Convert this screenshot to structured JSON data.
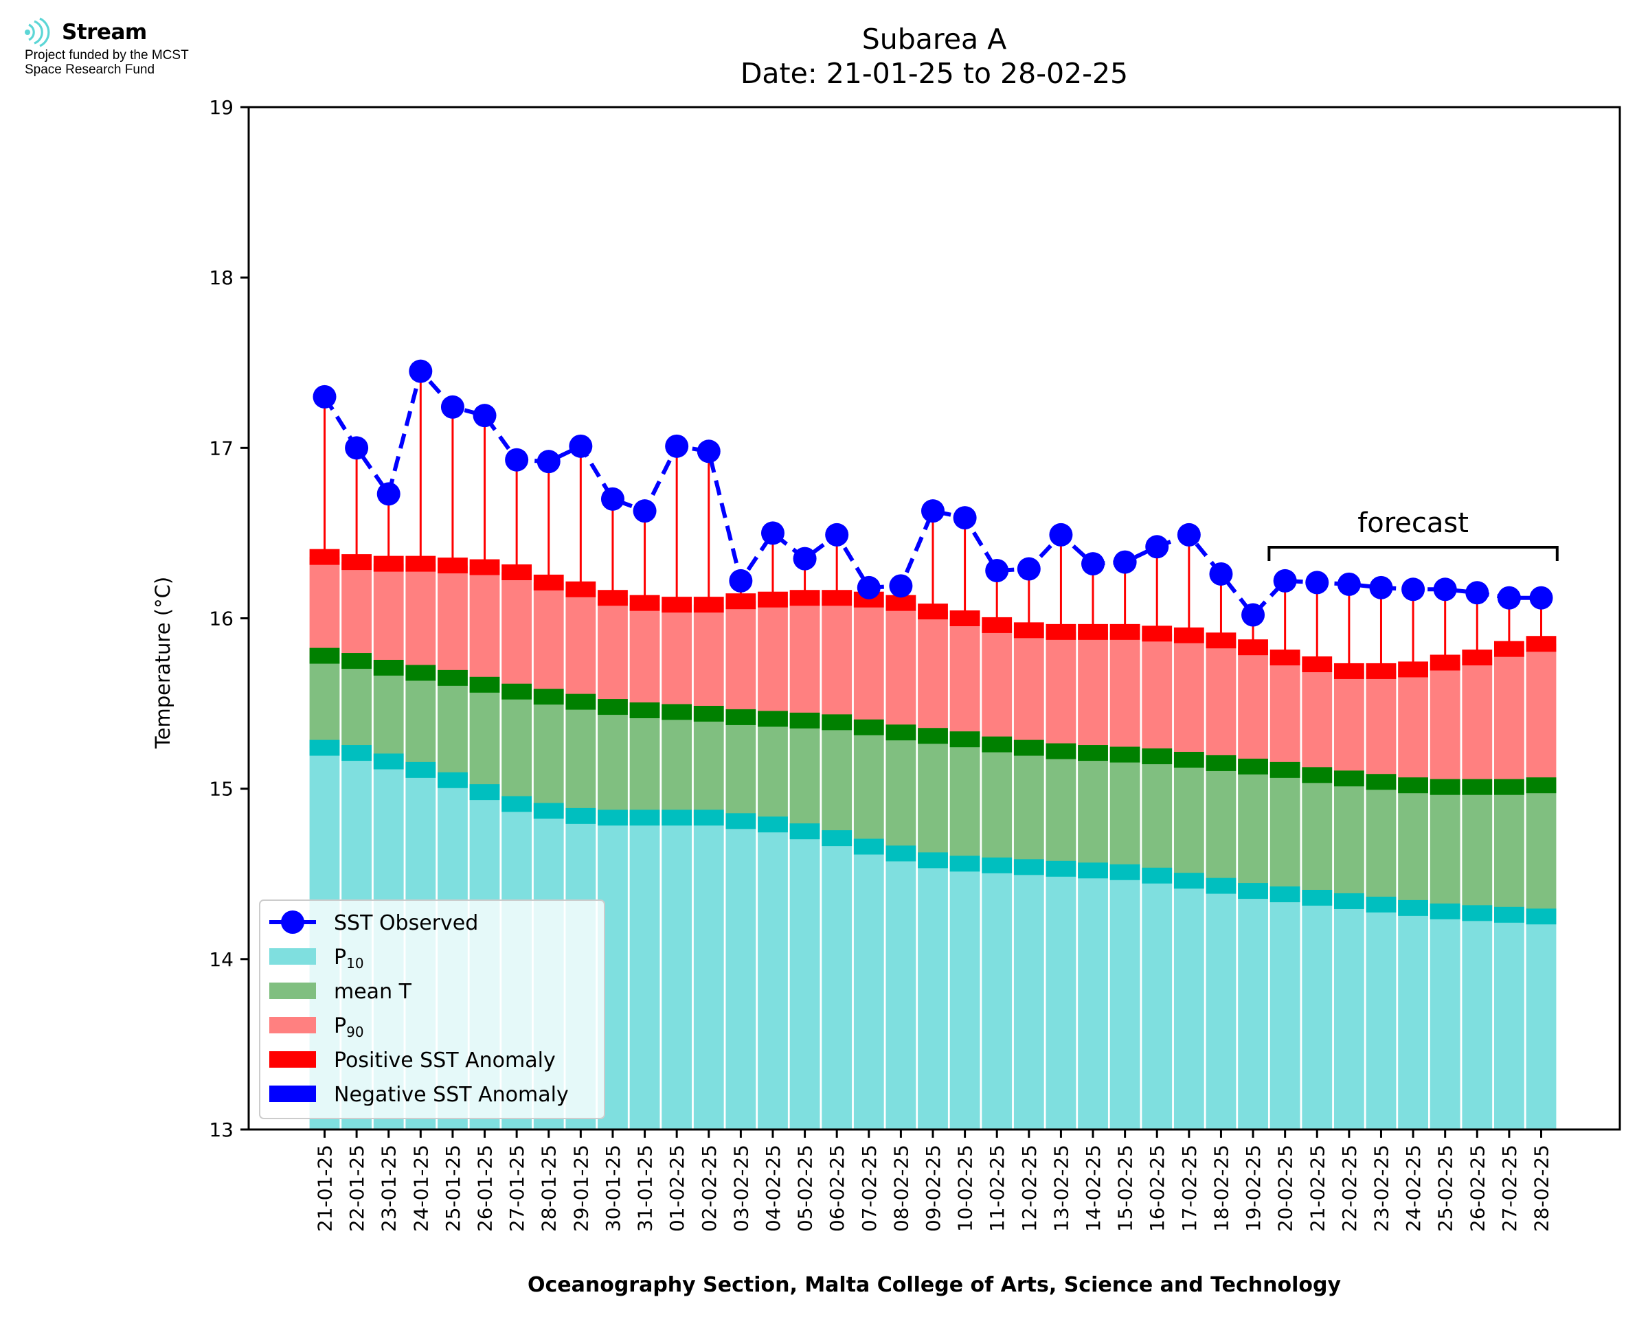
{
  "logo": {
    "name": "Stream",
    "funding_line1": "Project funded by the MCST",
    "funding_line2": "Space Research Fund",
    "color": "#5cd6d6"
  },
  "chart_data": {
    "type": "bar",
    "title": "Subarea A",
    "subtitle": "Date: 21-01-25 to 28-02-25",
    "xlabel": "Oceanography Section, Malta College of Arts, Science and Technology",
    "ylabel": "Temperature (°C)",
    "ylim": [
      13,
      19
    ],
    "yticks": [
      13,
      14,
      15,
      16,
      17,
      18,
      19
    ],
    "grid": false,
    "legend_position": "lower-left",
    "categories": [
      "21-01-25",
      "22-01-25",
      "23-01-25",
      "24-01-25",
      "25-01-25",
      "26-01-25",
      "27-01-25",
      "28-01-25",
      "29-01-25",
      "30-01-25",
      "31-01-25",
      "01-02-25",
      "02-02-25",
      "03-02-25",
      "04-02-25",
      "05-02-25",
      "06-02-25",
      "07-02-25",
      "08-02-25",
      "09-02-25",
      "10-02-25",
      "11-02-25",
      "12-02-25",
      "13-02-25",
      "14-02-25",
      "15-02-25",
      "16-02-25",
      "17-02-25",
      "18-02-25",
      "19-02-25",
      "20-02-25",
      "21-02-25",
      "22-02-25",
      "23-02-25",
      "24-02-25",
      "25-02-25",
      "26-02-25",
      "27-02-25",
      "28-02-25"
    ],
    "series": [
      {
        "name": "P10",
        "color": "#7fdfdf",
        "marker_color": "#00bfbf",
        "values": [
          15.24,
          15.21,
          15.16,
          15.11,
          15.05,
          14.98,
          14.91,
          14.87,
          14.84,
          14.83,
          14.83,
          14.83,
          14.83,
          14.81,
          14.79,
          14.75,
          14.71,
          14.66,
          14.62,
          14.58,
          14.56,
          14.55,
          14.54,
          14.53,
          14.52,
          14.51,
          14.49,
          14.46,
          14.43,
          14.4,
          14.38,
          14.36,
          14.34,
          14.32,
          14.3,
          14.28,
          14.27,
          14.26,
          14.25
        ]
      },
      {
        "name": "mean T",
        "color": "#80bf80",
        "marker_color": "#008000",
        "values": [
          15.78,
          15.75,
          15.71,
          15.68,
          15.65,
          15.61,
          15.57,
          15.54,
          15.51,
          15.48,
          15.46,
          15.45,
          15.44,
          15.42,
          15.41,
          15.4,
          15.39,
          15.36,
          15.33,
          15.31,
          15.29,
          15.26,
          15.24,
          15.22,
          15.21,
          15.2,
          15.19,
          15.17,
          15.15,
          15.13,
          15.11,
          15.08,
          15.06,
          15.04,
          15.02,
          15.01,
          15.01,
          15.01,
          15.02
        ]
      },
      {
        "name": "P90",
        "color": "#ff8080",
        "marker_color": "#ff0000",
        "values": [
          16.36,
          16.33,
          16.32,
          16.32,
          16.31,
          16.3,
          16.27,
          16.21,
          16.17,
          16.12,
          16.09,
          16.08,
          16.08,
          16.1,
          16.11,
          16.12,
          16.12,
          16.11,
          16.09,
          16.04,
          16.0,
          15.96,
          15.93,
          15.92,
          15.92,
          15.92,
          15.91,
          15.9,
          15.87,
          15.83,
          15.77,
          15.73,
          15.69,
          15.69,
          15.7,
          15.74,
          15.77,
          15.82,
          15.85
        ]
      },
      {
        "name": "SST Observed",
        "color": "#0000ff",
        "values": [
          17.3,
          17.0,
          16.73,
          17.45,
          17.24,
          17.19,
          16.93,
          16.92,
          17.01,
          16.7,
          16.63,
          17.01,
          16.98,
          16.22,
          16.5,
          16.35,
          16.49,
          16.18,
          16.19,
          16.63,
          16.59,
          16.28,
          16.29,
          16.49,
          16.32,
          16.33,
          16.42,
          16.49,
          16.26,
          16.02,
          16.22,
          16.21,
          16.2,
          16.18,
          16.17,
          16.17,
          16.15,
          16.12,
          16.12
        ]
      }
    ],
    "anomaly_colors": {
      "positive": "#ff0000",
      "negative": "#0000ff"
    },
    "legend": [
      {
        "label": "SST Observed",
        "kind": "line-marker",
        "color": "#0000ff"
      },
      {
        "label": "P",
        "sub": "10",
        "kind": "patch",
        "color": "#7fdfdf"
      },
      {
        "label": "mean T",
        "kind": "patch",
        "color": "#80bf80"
      },
      {
        "label": "P",
        "sub": "90",
        "kind": "patch",
        "color": "#ff8080"
      },
      {
        "label": "Positive SST Anomaly",
        "kind": "patch",
        "color": "#ff0000"
      },
      {
        "label": "Negative SST Anomaly",
        "kind": "patch",
        "color": "#0000ff"
      }
    ],
    "annotations": [
      {
        "text": "forecast",
        "from": "20-02-25",
        "to": "28-02-25"
      }
    ]
  }
}
